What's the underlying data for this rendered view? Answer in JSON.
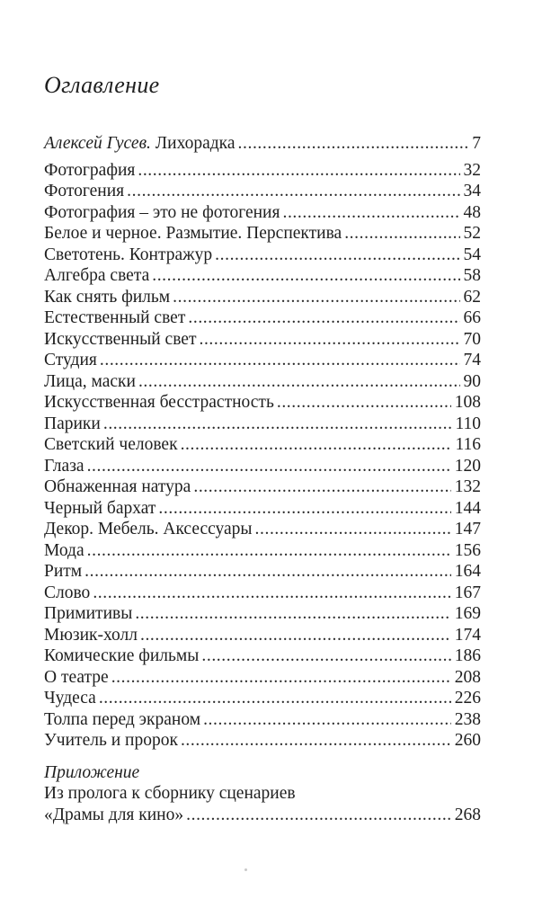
{
  "page": {
    "title": "Оглавление",
    "toc": {
      "first_entry": {
        "author": "Алексей Гусев.",
        "title": "Лихорадка",
        "page": "7"
      },
      "entries": [
        {
          "title": "Фотография",
          "page": "32"
        },
        {
          "title": "Фотогения",
          "page": "34"
        },
        {
          "title": "Фотография – это не фотогения",
          "page": "48"
        },
        {
          "title": "Белое и черное. Размытие. Перспектива",
          "page": "52"
        },
        {
          "title": "Светотень. Контражур",
          "page": "54"
        },
        {
          "title": "Алгебра света",
          "page": "58"
        },
        {
          "title": "Как снять фильм",
          "page": "62"
        },
        {
          "title": "Естественный свет",
          "page": "66"
        },
        {
          "title": "Искусственный свет",
          "page": "70"
        },
        {
          "title": "Студия",
          "page": "74"
        },
        {
          "title": "Лица, маски",
          "page": "90"
        },
        {
          "title": "Искусственная бесстрастность",
          "page": "108"
        },
        {
          "title": "Парики",
          "page": "110"
        },
        {
          "title": "Светский человек",
          "page": "116"
        },
        {
          "title": "Глаза",
          "page": "120"
        },
        {
          "title": "Обнаженная натура",
          "page": "132"
        },
        {
          "title": "Черный бархат",
          "page": "144"
        },
        {
          "title": "Декор. Мебель. Аксессуары",
          "page": "147"
        },
        {
          "title": "Мода",
          "page": "156"
        },
        {
          "title": "Ритм",
          "page": "164"
        },
        {
          "title": "Слово",
          "page": "167"
        },
        {
          "title": "Примитивы",
          "page": "169"
        },
        {
          "title": "Мюзик-холл",
          "page": "174"
        },
        {
          "title": "Комические фильмы",
          "page": "186"
        },
        {
          "title": "О театре",
          "page": "208"
        },
        {
          "title": "Чудеса",
          "page": "226"
        },
        {
          "title": "Толпа перед экраном",
          "page": "238"
        },
        {
          "title": "Учитель и пророк",
          "page": "260"
        }
      ],
      "appendix": {
        "heading": "Приложение",
        "line1": "Из пролога к сборнику сценариев",
        "line2": "«Драмы для кино»",
        "page": "268"
      }
    }
  }
}
